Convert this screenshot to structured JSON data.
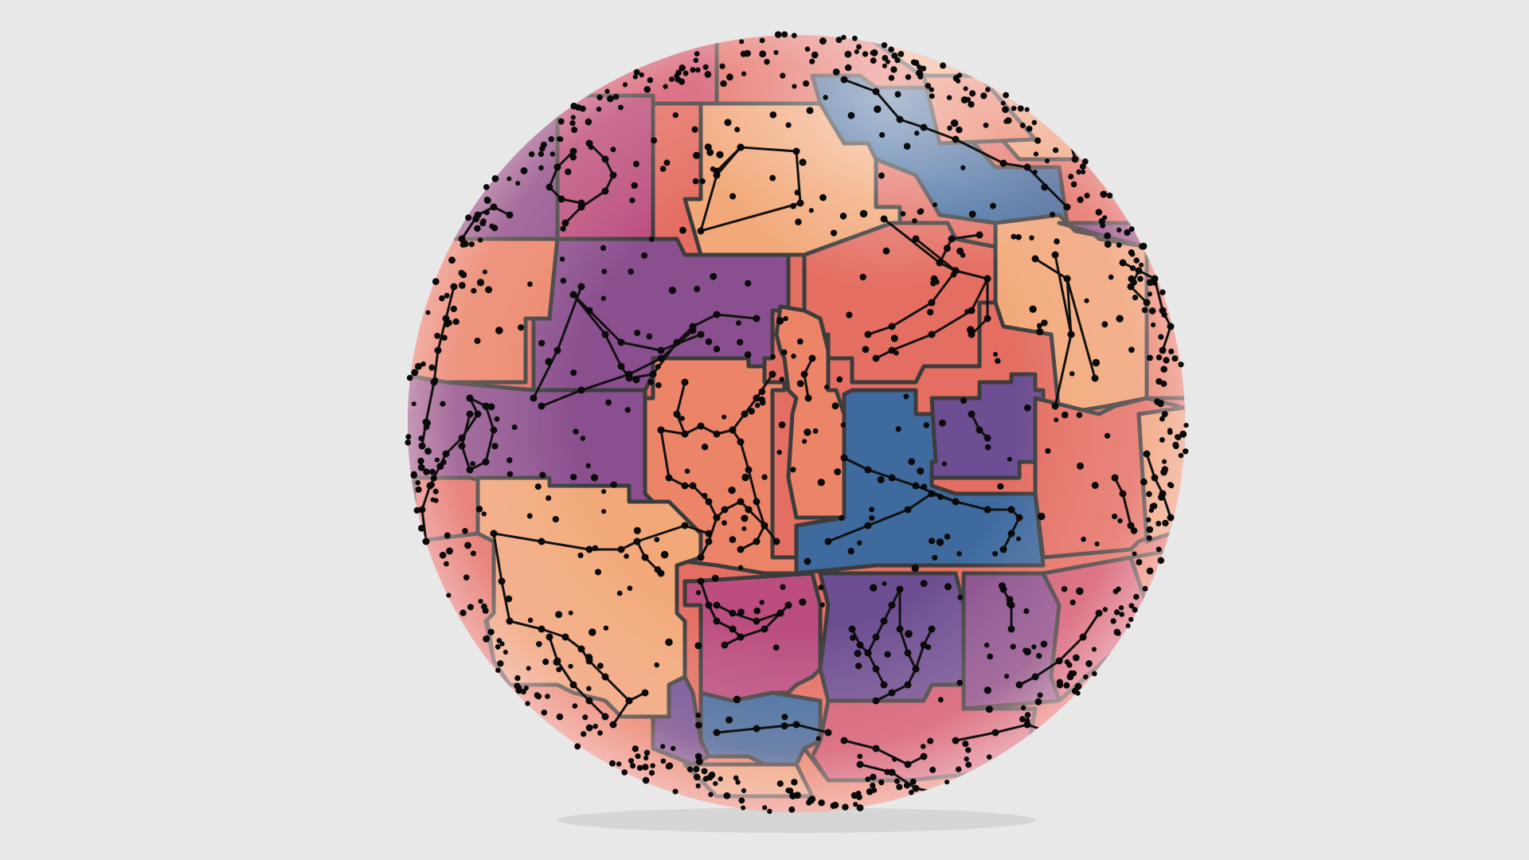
{
  "scene": {
    "background": "#e8e8e8",
    "subject": "celestial-globe",
    "outline_color": "#3c3c3c",
    "star_color": "#0a0a0a",
    "palette": {
      "peach": "#f2a878",
      "salmon": "#ec8468",
      "coral": "#e46e62",
      "rose": "#d45a72",
      "magenta": "#bb4e7e",
      "purple": "#8a4f8e",
      "violet": "#6e4e92",
      "blue": "#3e6a9e"
    }
  }
}
